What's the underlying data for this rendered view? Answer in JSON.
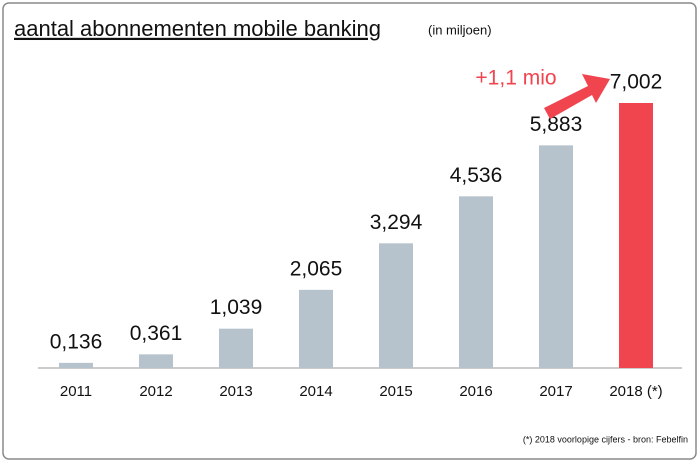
{
  "chart_data": {
    "type": "bar",
    "title": "aantal abonnementen mobile banking",
    "subtitle": "(in miljoen)",
    "categories": [
      "2011",
      "2012",
      "2013",
      "2014",
      "2015",
      "2016",
      "2017",
      "2018 (*)"
    ],
    "values": [
      0.136,
      0.361,
      1.039,
      2.065,
      3.294,
      4.536,
      5.883,
      7.002
    ],
    "value_labels": [
      "0,136",
      "0,361",
      "1,039",
      "2,065",
      "3,294",
      "4,536",
      "5,883",
      "7,002"
    ],
    "colors": [
      "#b7c3cc",
      "#b7c3cc",
      "#b7c3cc",
      "#b7c3cc",
      "#b7c3cc",
      "#b7c3cc",
      "#b7c3cc",
      "#f0444f"
    ],
    "annotation": "+1,1 mio",
    "annotation_color": "#f0444f",
    "footnote": "(*) 2018 voorlopige cijfers - bron: Febelfin"
  }
}
